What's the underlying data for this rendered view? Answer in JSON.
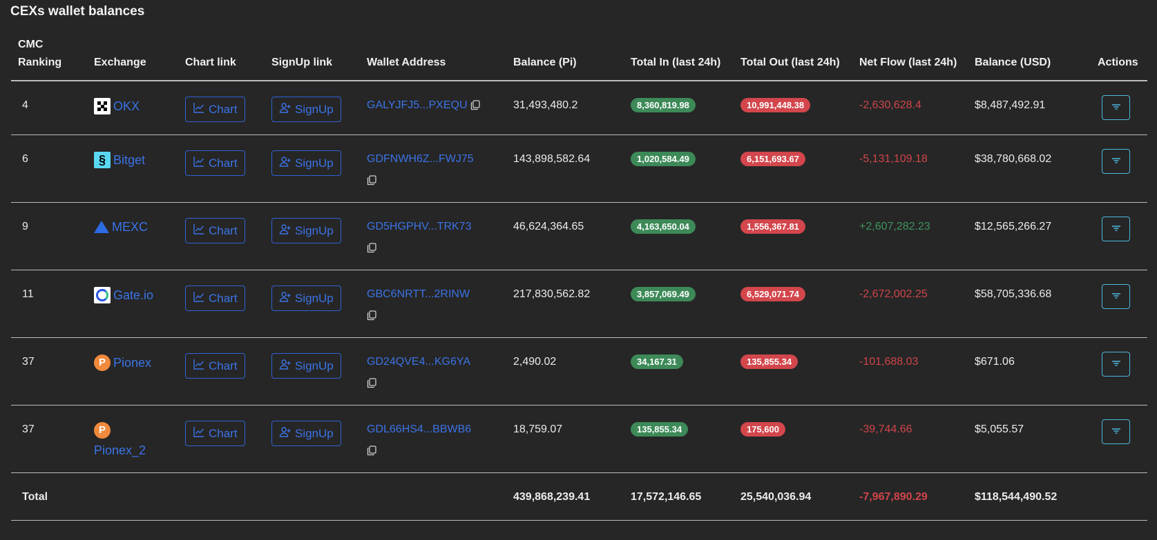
{
  "title": "CEXs wallet balances",
  "colors": {
    "link": "#3b73e6",
    "in_badge": "#3d8a58",
    "out_badge": "#d2464c",
    "negative": "#d0454b",
    "positive": "#3f9560",
    "action_border": "#4fb8e0"
  },
  "columns": [
    "CMC Ranking",
    "Exchange",
    "Chart link",
    "SignUp link",
    "Wallet Address",
    "Balance (Pi)",
    "Total In (last 24h)",
    "Total Out (last 24h)",
    "Net Flow (last 24h)",
    "Balance (USD)",
    "Actions"
  ],
  "chart_label": "Chart",
  "signup_label": "SignUp",
  "rows": [
    {
      "rank": "4",
      "exchange": "OKX",
      "logo": "okx",
      "address": "GALYJFJ5...PXEQU",
      "balance": "31,493,480.2",
      "total_in": "8,360,819.98",
      "total_out": "10,991,448.38",
      "net_flow": "-2,630,628.4",
      "balance_usd": "$8,487,492.91"
    },
    {
      "rank": "6",
      "exchange": "Bitget",
      "logo": "bitget",
      "address": "GDFNWH6Z...FWJ75",
      "balance": "143,898,582.64",
      "total_in": "1,020,584.49",
      "total_out": "6,151,693.67",
      "net_flow": "-5,131,109.18",
      "balance_usd": "$38,780,668.02"
    },
    {
      "rank": "9",
      "exchange": "MEXC",
      "logo": "mexc",
      "address": "GD5HGPHV...TRK73",
      "balance": "46,624,364.65",
      "total_in": "4,163,650.04",
      "total_out": "1,556,367.81",
      "net_flow": "+2,607,282.23",
      "balance_usd": "$12,565,266.27"
    },
    {
      "rank": "11",
      "exchange": "Gate.io",
      "logo": "gate",
      "address": "GBC6NRTT...2RINW",
      "balance": "217,830,562.82",
      "total_in": "3,857,069.49",
      "total_out": "6,529,071.74",
      "net_flow": "-2,672,002.25",
      "balance_usd": "$58,705,336.68"
    },
    {
      "rank": "37",
      "exchange": "Pionex",
      "logo": "pionex",
      "address": "GD24QVE4...KG6YA",
      "balance": "2,490.02",
      "total_in": "34,167.31",
      "total_out": "135,855.34",
      "net_flow": "-101,688.03",
      "balance_usd": "$671.06"
    },
    {
      "rank": "37",
      "exchange": "Pionex_2",
      "logo": "pionex",
      "address": "GDL66HS4...BBWB6",
      "balance": "18,759.07",
      "total_in": "135,855.34",
      "total_out": "175,600",
      "net_flow": "-39,744.66",
      "balance_usd": "$5,055.57"
    }
  ],
  "total": {
    "label": "Total",
    "balance": "439,868,239.41",
    "total_in": "17,572,146.65",
    "total_out": "25,540,036.94",
    "net_flow": "-7,967,890.29",
    "balance_usd": "$118,544,490.52"
  }
}
